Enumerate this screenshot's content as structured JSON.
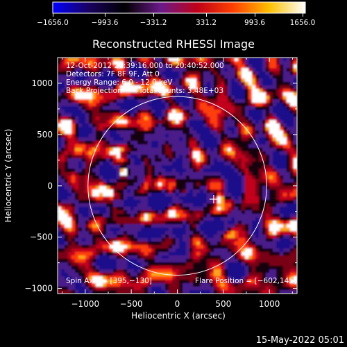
{
  "colorbar": {
    "tick_labels": [
      "−1656.0",
      "−993.6",
      "−331.2",
      "331.2",
      "993.6",
      "1656.0"
    ],
    "stops": [
      "#0000ff",
      "#1a0060",
      "#000000",
      "#6b1a8a",
      "#c00018",
      "#ff4000",
      "#ffc000",
      "#ffffff"
    ]
  },
  "title": "Reconstructed RHESSI Image",
  "info": {
    "time_range": "12-Oct-2012 20:39:16.000 to 20:40:52.000",
    "detectors": "Detectors: 7F 8F 9F, Att 0",
    "energy": "Energy Range: 6.0 - 12.0 keV",
    "method": "Back Projection",
    "counts": "Total counts: 3.48E+03"
  },
  "footer_left": "Spin Axis = [395,−130]",
  "footer_right": "Flare Position = [−602,145]",
  "axes": {
    "xlabel": "Heliocentric X (arcsec)",
    "ylabel": "Heliocentric Y (arcsec)",
    "xlim": [
      -1300,
      1300
    ],
    "ylim": [
      -1050,
      1250
    ],
    "xticks": [
      -1000,
      -500,
      0,
      500,
      1000
    ],
    "yticks": [
      -1000,
      -500,
      0,
      500,
      1000
    ],
    "xtick_labels": [
      "−1000",
      "−500",
      "0",
      "500",
      "1000"
    ],
    "ytick_labels": [
      "−1000",
      "−500",
      "0",
      "500",
      "1000"
    ]
  },
  "solar_limb_radius_arcsec": 970,
  "spin_axis_marker": [
    395,
    -130
  ],
  "bright_sources": [
    {
      "x": -602,
      "y": 145,
      "level": 1.0
    },
    {
      "x": 430,
      "y": -110,
      "level": 0.55
    },
    {
      "x": 60,
      "y": -40,
      "level": 0.45
    }
  ],
  "timestamp": "15-May-2022 05:01"
}
